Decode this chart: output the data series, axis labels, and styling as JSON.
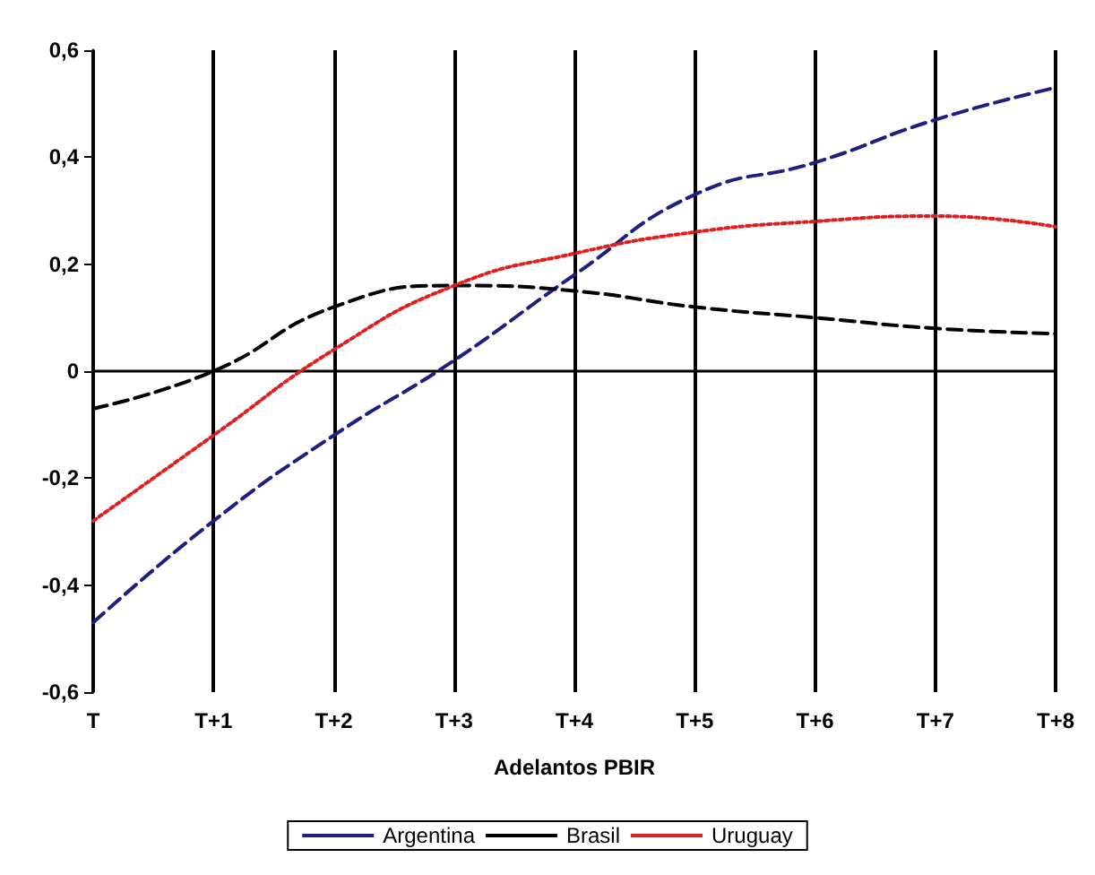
{
  "chart_data": {
    "type": "line",
    "xlabel": "Adelantos PBIR",
    "categories": [
      "T",
      "T+1",
      "T+2",
      "T+3",
      "T+4",
      "T+5",
      "T+6",
      "T+7",
      "T+8"
    ],
    "series": [
      {
        "name": "Argentina",
        "color": "#1f1f80",
        "line_style": "dashed",
        "values": [
          -0.47,
          -0.28,
          -0.12,
          0.02,
          0.18,
          0.33,
          0.39,
          0.47,
          0.53
        ]
      },
      {
        "name": "Brasil",
        "color": "#000000",
        "line_style": "dashed",
        "values": [
          -0.07,
          0.0,
          0.12,
          0.16,
          0.15,
          0.12,
          0.1,
          0.08,
          0.07
        ]
      },
      {
        "name": "Uruguay",
        "color": "#e02020",
        "line_style": "dotted",
        "values": [
          -0.28,
          -0.12,
          0.04,
          0.16,
          0.22,
          0.26,
          0.28,
          0.29,
          0.27
        ]
      }
    ],
    "ylim": [
      -0.6,
      0.6
    ],
    "yticks": [
      {
        "value": -0.6,
        "label": "-0,6"
      },
      {
        "value": -0.4,
        "label": "-0,4"
      },
      {
        "value": -0.2,
        "label": "-0,2"
      },
      {
        "value": 0,
        "label": "0"
      },
      {
        "value": 0.2,
        "label": "0,2"
      },
      {
        "value": 0.4,
        "label": "0,4"
      },
      {
        "value": 0.6,
        "label": "0,6"
      }
    ],
    "grid": "x",
    "legend": "bottom",
    "marker": "none"
  }
}
